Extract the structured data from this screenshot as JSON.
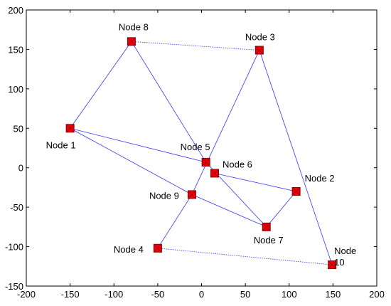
{
  "chart_data": {
    "type": "scatter",
    "title": "",
    "xlabel": "",
    "ylabel": "",
    "xlim": [
      -200,
      200
    ],
    "ylim": [
      -150,
      200
    ],
    "xticks": [
      -200,
      -150,
      -100,
      -50,
      0,
      50,
      100,
      150,
      200
    ],
    "yticks": [
      -150,
      -100,
      -50,
      0,
      50,
      100,
      150,
      200
    ],
    "grid": false,
    "box": true,
    "marker_color": "#e8000b",
    "marker_edge_color": "#8b0000",
    "edge_color": "#3333ff",
    "nodes": [
      {
        "id": 1,
        "label": "Node 1",
        "x": -150,
        "y": 50
      },
      {
        "id": 2,
        "label": "Node 2",
        "x": 108,
        "y": -30
      },
      {
        "id": 3,
        "label": "Node 3",
        "x": 66,
        "y": 149
      },
      {
        "id": 4,
        "label": "Node 4",
        "x": -50,
        "y": -102
      },
      {
        "id": 5,
        "label": "Node 5",
        "x": 5,
        "y": 7
      },
      {
        "id": 6,
        "label": "Node 6",
        "x": 15,
        "y": -7
      },
      {
        "id": 7,
        "label": "Node 7",
        "x": 74,
        "y": -75
      },
      {
        "id": 8,
        "label": "Node 8",
        "x": -80,
        "y": 160
      },
      {
        "id": 9,
        "label": "Node 9",
        "x": -11,
        "y": -34
      },
      {
        "id": 10,
        "label": "Node\n10",
        "x": 149,
        "y": -123
      }
    ],
    "edges": [
      {
        "from": 8,
        "to": 3,
        "style": "dotted"
      },
      {
        "from": 8,
        "to": 1,
        "style": "solid"
      },
      {
        "from": 8,
        "to": 5,
        "style": "solid"
      },
      {
        "from": 1,
        "to": 5,
        "style": "solid"
      },
      {
        "from": 1,
        "to": 9,
        "style": "solid"
      },
      {
        "from": 3,
        "to": 9,
        "style": "solid"
      },
      {
        "from": 3,
        "to": 10,
        "style": "solid"
      },
      {
        "from": 5,
        "to": 7,
        "style": "solid"
      },
      {
        "from": 6,
        "to": 2,
        "style": "solid"
      },
      {
        "from": 9,
        "to": 4,
        "style": "solid"
      },
      {
        "from": 9,
        "to": 7,
        "style": "solid"
      },
      {
        "from": 7,
        "to": 2,
        "style": "solid"
      },
      {
        "from": 4,
        "to": 10,
        "style": "dotted"
      }
    ]
  }
}
